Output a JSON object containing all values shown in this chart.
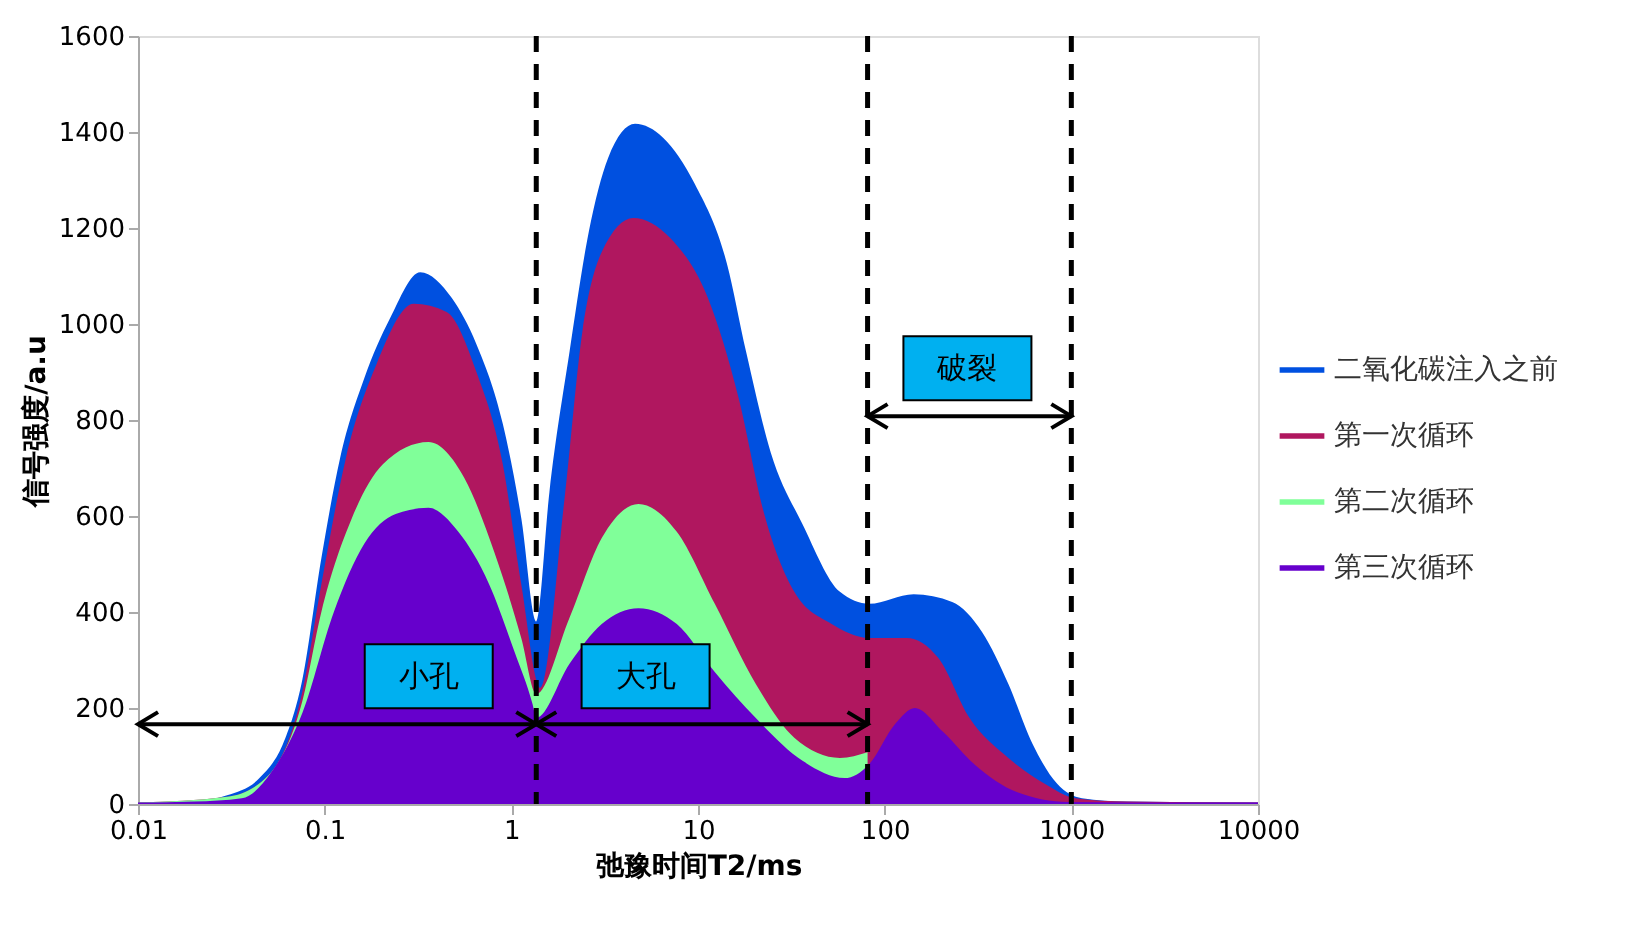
{
  "chart_data": {
    "type": "area",
    "xlabel": "弛豫时间T2/ms",
    "ylabel": "信号强度/a.u",
    "log": "x",
    "xlim": [
      0.01,
      10000
    ],
    "xticks": [
      0.01,
      0.1,
      1,
      10,
      100,
      1000,
      10000
    ],
    "ylim": [
      0,
      1600
    ],
    "yticks": [
      0,
      200,
      400,
      600,
      800,
      1000,
      1200,
      1400,
      1600
    ],
    "grid": false,
    "legend": "right",
    "series": [
      {
        "name": "二氧化碳注入之前",
        "color": "#0050e0",
        "x": [
          0.01,
          0.02,
          0.03,
          0.045,
          0.0605,
          0.076,
          0.096,
          0.121,
          0.163,
          0.224,
          0.325,
          0.48,
          0.65,
          0.9,
          1.13,
          1.36,
          1.6,
          2.05,
          2.6,
          3.3,
          4.6,
          6.5,
          9.6,
          14.3,
          18.1,
          24.5,
          36.3,
          57.6,
          82.6,
          143,
          230,
          333,
          460,
          620,
          840,
          1140,
          2000,
          10000
        ],
        "values": [
          3,
          5,
          18,
          55,
          130,
          260,
          512,
          721,
          887,
          1012,
          1108,
          1054,
          958,
          792,
          596,
          380,
          650,
          942,
          1192,
          1346,
          1417,
          1388,
          1292,
          1125,
          942,
          733,
          583,
          442,
          417,
          437,
          421,
          358,
          250,
          125,
          42,
          12,
          5,
          3
        ]
      },
      {
        "name": "第一次循环",
        "color": "#b0175f",
        "x": [
          0.01,
          0.03,
          0.05,
          0.076,
          0.096,
          0.13,
          0.19,
          0.3,
          0.45,
          0.65,
          0.9,
          1.13,
          1.43,
          1.93,
          2.4,
          3.05,
          4.5,
          7.1,
          11.3,
          16.5,
          22.5,
          32.8,
          52,
          82.6,
          131,
          194,
          285,
          460,
          720,
          1050,
          2000,
          10000
        ],
        "values": [
          3,
          15,
          60,
          235,
          458,
          721,
          917,
          1042,
          1025,
          900,
          708,
          458,
          242,
          638,
          983,
          1150,
          1221,
          1179,
          1054,
          846,
          608,
          442,
          375,
          346,
          346,
          304,
          179,
          96,
          42,
          12,
          5,
          3
        ]
      },
      {
        "name": "第二次循环",
        "color": "#80ff99",
        "x": [
          0.01,
          0.03,
          0.05,
          0.076,
          0.096,
          0.14,
          0.205,
          0.36,
          0.56,
          0.81,
          1.13,
          1.36,
          2.05,
          3.05,
          4.8,
          7.7,
          12.3,
          20.4,
          32.8,
          57.6,
          81
        ],
        "values": [
          3,
          15,
          60,
          215,
          400,
          596,
          708,
          754,
          679,
          525,
          346,
          229,
          388,
          554,
          625,
          567,
          417,
          250,
          138,
          96,
          108
        ]
      },
      {
        "name": "第三次循环",
        "color": "#6600cc",
        "x": [
          0.01,
          0.02,
          0.036,
          0.052,
          0.076,
          0.112,
          0.163,
          0.24,
          0.36,
          0.52,
          0.76,
          1.04,
          1.3,
          1.36,
          2.05,
          3.05,
          4.8,
          7.7,
          12.3,
          20.4,
          36.3,
          61,
          82.6,
          114,
          145,
          206,
          302,
          510,
          960,
          2000,
          10000
        ],
        "values": [
          3,
          5,
          12,
          67,
          190,
          400,
          542,
          604,
          617,
          567,
          458,
          317,
          208,
          179,
          292,
          375,
          408,
          375,
          275,
          179,
          90,
          54,
          83,
          167,
          200,
          150,
          83,
          25,
          4,
          3,
          3
        ]
      }
    ],
    "ref_lines": [
      {
        "axis": "x",
        "value": 1.36,
        "color": "#000000",
        "line_style": "dashed"
      },
      {
        "axis": "x",
        "value": 81,
        "color": "#000000",
        "line_style": "dashed"
      },
      {
        "axis": "x",
        "value": 1000,
        "color": "#000000",
        "line_style": "dashed"
      }
    ],
    "annotations": [
      "小孔",
      "大孔",
      "破裂"
    ]
  }
}
